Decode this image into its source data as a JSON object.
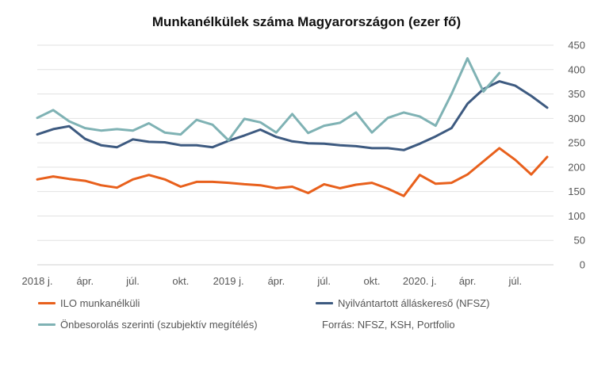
{
  "chart_data": {
    "type": "line",
    "title": "Munkanélkülek száma Magyarországon (ezer fő)",
    "source": "Forrás: NFSZ, KSH, Portfolio",
    "xlabel": "",
    "ylabel": "",
    "ylim": [
      0,
      450
    ],
    "yticks": [
      0,
      50,
      100,
      150,
      200,
      250,
      300,
      350,
      400,
      450
    ],
    "x": [
      "2018-01",
      "2018-02",
      "2018-03",
      "2018-04",
      "2018-05",
      "2018-06",
      "2018-07",
      "2018-08",
      "2018-09",
      "2018-10",
      "2018-11",
      "2018-12",
      "2019-01",
      "2019-02",
      "2019-03",
      "2019-04",
      "2019-05",
      "2019-06",
      "2019-07",
      "2019-08",
      "2019-09",
      "2019-10",
      "2019-11",
      "2019-12",
      "2020-01",
      "2020-02",
      "2020-03",
      "2020-04",
      "2020-05",
      "2020-06",
      "2020-07",
      "2020-08",
      "2020-09"
    ],
    "xticks": [
      {
        "month": "2018-01",
        "label": "2018 j."
      },
      {
        "month": "2018-04",
        "label": "ápr."
      },
      {
        "month": "2018-07",
        "label": "júl."
      },
      {
        "month": "2018-10",
        "label": "okt."
      },
      {
        "month": "2019-01",
        "label": "2019 j."
      },
      {
        "month": "2019-04",
        "label": "ápr."
      },
      {
        "month": "2019-07",
        "label": "júl."
      },
      {
        "month": "2019-10",
        "label": "okt."
      },
      {
        "month": "2020-01",
        "label": "2020. j."
      },
      {
        "month": "2020-04",
        "label": "ápr."
      },
      {
        "month": "2020-07",
        "label": "júl."
      }
    ],
    "grid": true,
    "y_axis_side": "right",
    "legend_position": "bottom",
    "series": [
      {
        "name": "ILO munkanélküli",
        "color": "#E8601C",
        "values": [
          175,
          181,
          176,
          172,
          163,
          158,
          175,
          184,
          175,
          160,
          170,
          170,
          168,
          165,
          163,
          157,
          160,
          147,
          165,
          157,
          164,
          168,
          156,
          141,
          184,
          166,
          168,
          185,
          212,
          239,
          215,
          185,
          221
        ]
      },
      {
        "name": "Nyilvántartott álláskereső (NFSZ)",
        "color": "#3D5A80",
        "values": [
          267,
          278,
          284,
          258,
          245,
          241,
          257,
          252,
          251,
          245,
          245,
          241,
          254,
          265,
          277,
          262,
          253,
          249,
          248,
          245,
          243,
          239,
          239,
          235,
          248,
          263,
          280,
          330,
          360,
          376,
          367,
          346,
          322
        ]
      },
      {
        "name": "Önbesorolás szerinti (szubjektív megítélés)",
        "color": "#7FB2B4",
        "values": [
          301,
          317,
          294,
          280,
          275,
          278,
          275,
          290,
          271,
          267,
          297,
          287,
          255,
          299,
          292,
          271,
          309,
          270,
          285,
          291,
          312,
          271,
          301,
          312,
          304,
          285,
          350,
          423,
          355,
          393,
          null,
          null,
          null
        ]
      }
    ]
  }
}
